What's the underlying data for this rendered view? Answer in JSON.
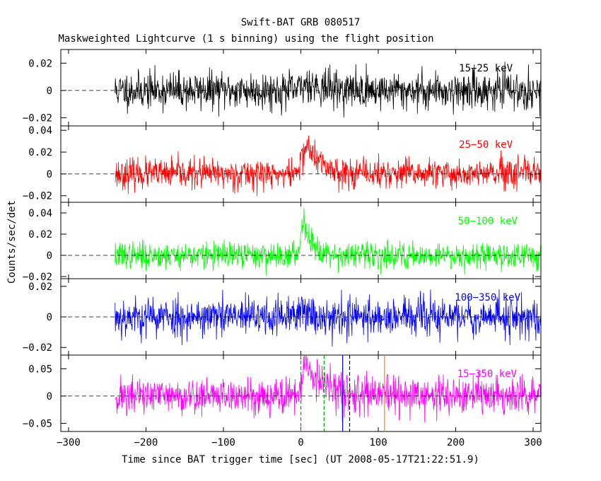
{
  "chart_data": {
    "type": "line",
    "title": "Swift-BAT GRB 080517",
    "subtitle": "Maskweighted Lightcurve (1 s binning) using the flight position",
    "xlabel": "Time since BAT trigger time [sec] (UT 2008-05-17T21:22:51.9)",
    "ylabel": "Counts/sec/det",
    "xlim": [
      -310,
      310
    ],
    "x_ticks": [
      -300,
      -200,
      -100,
      0,
      100,
      200,
      300
    ],
    "x_tick_labels": [
      "−300",
      "−200",
      "−100",
      "0",
      "100",
      "200",
      "300"
    ],
    "data_range": [
      -240,
      310
    ],
    "grid": false,
    "zero_line": "dashed",
    "series": [
      {
        "name": "15−25 keV",
        "color": "#000000",
        "ylim": [
          -0.026,
          0.03
        ],
        "y_ticks": [
          -0.02,
          0,
          0.02
        ],
        "y_tick_labels": [
          "−0.02",
          "0",
          "0.02"
        ],
        "noise_sigma": 0.0068,
        "peak": [
          {
            "t": 10,
            "amp": 0.006,
            "rise": 6,
            "decay": 20
          }
        ],
        "seed": 11
      },
      {
        "name": "25−50 keV",
        "color": "#ff0000",
        "ylim": [
          -0.026,
          0.044
        ],
        "y_ticks": [
          -0.02,
          0,
          0.02,
          0.04
        ],
        "y_tick_labels": [
          "−0.02",
          "0",
          "0.02",
          "0.04"
        ],
        "noise_sigma": 0.0068,
        "peak": [
          {
            "t": 8,
            "amp": 0.026,
            "rise": 6,
            "decay": 18
          }
        ],
        "seed": 23
      },
      {
        "name": "50−100 keV",
        "color": "#00ff00",
        "ylim": [
          -0.022,
          0.05
        ],
        "y_ticks": [
          -0.02,
          0,
          0.02,
          0.04
        ],
        "y_tick_labels": [
          "−0.02",
          "0",
          "0.02",
          "0.04"
        ],
        "noise_sigma": 0.0062,
        "peak": [
          {
            "t": 3,
            "amp": 0.034,
            "rise": 3,
            "decay": 12
          }
        ],
        "seed": 37
      },
      {
        "name": "100−350 keV",
        "color": "#0000ff",
        "ylim": [
          -0.025,
          0.025
        ],
        "y_ticks": [
          -0.02,
          0,
          0.02
        ],
        "y_tick_labels": [
          "−0.02",
          "0",
          "0.02"
        ],
        "noise_sigma": 0.0065,
        "peak": [
          {
            "t": 2,
            "amp": 0.01,
            "rise": 2,
            "decay": 6
          }
        ],
        "seed": 53
      },
      {
        "name": "15−350 keV",
        "color": "#ff00ff",
        "ylim": [
          -0.065,
          0.075
        ],
        "y_ticks": [
          -0.05,
          0,
          0.05
        ],
        "y_tick_labels": [
          "−0.05",
          "0",
          "0.05"
        ],
        "noise_sigma": 0.017,
        "peak": [
          {
            "t": 6,
            "amp": 0.06,
            "rise": 4,
            "decay": 22
          }
        ],
        "seed": 71
      }
    ],
    "markers": [
      {
        "x": 0,
        "color": "#00aa00",
        "style": "dashed"
      },
      {
        "x": 30,
        "color": "#00aa00",
        "style": "dashed"
      },
      {
        "x": 54,
        "color": "#0000ff",
        "style": "solid"
      },
      {
        "x": 63,
        "color": "#000000",
        "style": "dashed"
      },
      {
        "x": 108,
        "color": "#ff8000",
        "style": "solid"
      }
    ]
  }
}
